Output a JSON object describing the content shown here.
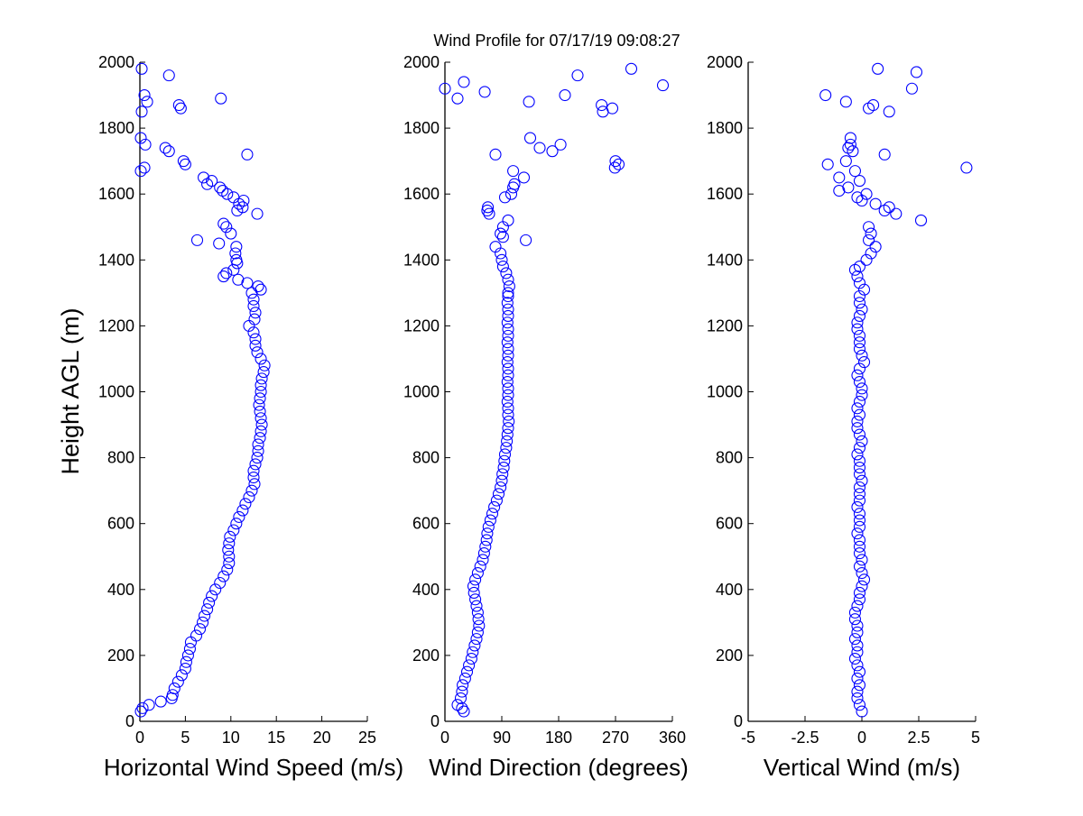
{
  "chart_data": [
    {
      "type": "scatter",
      "title": "Wind Profile for  07/17/19 09:08:27",
      "xlabel": "Horizontal Wind Speed (m/s)",
      "ylabel": "Height AGL (m)",
      "xlim": [
        0,
        25
      ],
      "ylim": [
        0,
        2000
      ],
      "xticks": [
        "0",
        "5",
        "10",
        "15",
        "20",
        "25"
      ],
      "xtick_values": [
        0,
        5,
        10,
        15,
        20,
        25
      ],
      "yticks": [
        "0",
        "200",
        "400",
        "600",
        "800",
        "1000",
        "1200",
        "1400",
        "1600",
        "1800",
        "2000"
      ],
      "ytick_values": [
        0,
        200,
        400,
        600,
        800,
        1000,
        1200,
        1400,
        1600,
        1800,
        2000
      ],
      "marker_color": "#0000ff",
      "y": [
        30,
        40,
        50,
        60,
        70,
        80,
        100,
        120,
        140,
        160,
        180,
        200,
        220,
        240,
        260,
        280,
        300,
        320,
        340,
        360,
        380,
        400,
        420,
        440,
        460,
        480,
        500,
        520,
        540,
        560,
        580,
        600,
        620,
        640,
        660,
        680,
        700,
        720,
        740,
        760,
        780,
        800,
        820,
        840,
        860,
        880,
        900,
        920,
        940,
        960,
        980,
        1000,
        1020,
        1040,
        1060,
        1080,
        1100,
        1120,
        1140,
        1160,
        1180,
        1200,
        1220,
        1240,
        1260,
        1280,
        1300,
        1310,
        1320,
        1330,
        1340,
        1350,
        1360,
        1370,
        1390,
        1400,
        1420,
        1440,
        1450,
        1460,
        1480,
        1500,
        1510,
        1540,
        1550,
        1560,
        1570,
        1580,
        1590,
        1600,
        1610,
        1620,
        1630,
        1640,
        1650,
        1670,
        1680,
        1690,
        1700,
        1720,
        1730,
        1740,
        1750,
        1770,
        1850,
        1860,
        1870,
        1880,
        1890,
        1900,
        1960,
        1980
      ],
      "x": [
        0.1,
        0.3,
        1,
        2.3,
        3.5,
        3.6,
        3.8,
        4.2,
        4.6,
        5,
        5.1,
        5.3,
        5.5,
        5.6,
        6.2,
        6.6,
        6.9,
        7.1,
        7.4,
        7.6,
        7.9,
        8.3,
        8.8,
        9.2,
        9.6,
        9.8,
        9.8,
        9.7,
        9.8,
        9.9,
        10.3,
        10.6,
        10.9,
        11.3,
        11.6,
        12,
        12.3,
        12.6,
        12.5,
        12.5,
        12.7,
        12.9,
        13,
        13,
        13.2,
        13.3,
        13.4,
        13.3,
        13.2,
        13.1,
        13.2,
        13.3,
        13.3,
        13.4,
        13.6,
        13.7,
        13.3,
        12.9,
        12.7,
        12.7,
        12.5,
        12,
        12.6,
        12.7,
        12.5,
        12.5,
        12.3,
        13.3,
        13,
        11.8,
        10.8,
        9.2,
        9.5,
        10.3,
        10.7,
        10.6,
        10.5,
        10.6,
        8.7,
        6.3,
        10,
        9.5,
        9.2,
        12.9,
        10.7,
        11.3,
        10.9,
        11.4,
        10.3,
        9.6,
        9.1,
        8.8,
        7.4,
        7.9,
        7,
        0.1,
        0.5,
        5,
        4.8,
        11.8,
        3.2,
        2.8,
        0.6,
        0.1,
        0.2,
        4.5,
        4.3,
        0.8,
        8.9,
        0.5,
        3.2,
        0.2
      ]
    },
    {
      "type": "scatter",
      "xlabel": "Wind Direction (degrees)",
      "xlim": [
        0,
        360
      ],
      "ylim": [
        0,
        2000
      ],
      "xticks": [
        "0",
        "90",
        "180",
        "270",
        "360"
      ],
      "xtick_values": [
        0,
        90,
        180,
        270,
        360
      ],
      "yticks": [
        "0",
        "200",
        "400",
        "600",
        "800",
        "1000",
        "1200",
        "1400",
        "1600",
        "1800",
        "2000"
      ],
      "ytick_values": [
        0,
        200,
        400,
        600,
        800,
        1000,
        1200,
        1400,
        1600,
        1800,
        2000
      ],
      "marker_color": "#0000ff",
      "y": [
        30,
        40,
        50,
        70,
        90,
        110,
        130,
        150,
        170,
        190,
        210,
        230,
        250,
        270,
        290,
        310,
        330,
        350,
        370,
        390,
        410,
        430,
        450,
        470,
        490,
        510,
        530,
        550,
        570,
        590,
        610,
        630,
        650,
        670,
        690,
        710,
        730,
        750,
        770,
        790,
        810,
        830,
        850,
        870,
        890,
        910,
        930,
        950,
        970,
        990,
        1010,
        1030,
        1050,
        1070,
        1090,
        1110,
        1130,
        1150,
        1170,
        1190,
        1210,
        1230,
        1250,
        1270,
        1290,
        1300,
        1320,
        1340,
        1360,
        1380,
        1400,
        1420,
        1440,
        1460,
        1470,
        1480,
        1500,
        1520,
        1540,
        1550,
        1560,
        1590,
        1600,
        1620,
        1630,
        1650,
        1670,
        1680,
        1690,
        1700,
        1720,
        1730,
        1740,
        1750,
        1770,
        1850,
        1860,
        1870,
        1880,
        1890,
        1900,
        1910,
        1920,
        1930,
        1940,
        1960,
        1980
      ],
      "x": [
        30,
        27,
        20,
        25,
        27,
        28,
        32,
        35,
        38,
        42,
        44,
        47,
        50,
        52,
        54,
        53,
        52,
        50,
        48,
        46,
        45,
        48,
        52,
        56,
        60,
        62,
        64,
        66,
        67,
        69,
        72,
        75,
        78,
        82,
        85,
        88,
        90,
        91,
        93,
        94,
        95,
        97,
        98,
        99,
        100,
        101,
        100,
        100,
        99,
        100,
        100,
        99,
        100,
        100,
        99,
        100,
        100,
        99,
        100,
        100,
        99,
        100,
        100,
        99,
        100,
        100,
        102,
        100,
        97,
        92,
        90,
        88,
        80,
        128,
        92,
        88,
        92,
        100,
        70,
        67,
        68,
        95,
        105,
        108,
        110,
        125,
        108,
        269,
        275,
        270,
        80,
        170,
        150,
        183,
        135,
        250,
        265,
        248,
        133,
        20,
        190,
        63,
        0,
        345,
        30,
        210,
        295
      ]
    },
    {
      "type": "scatter",
      "xlabel": "Vertical Wind (m/s)",
      "xlim": [
        -5,
        5
      ],
      "ylim": [
        0,
        2000
      ],
      "xticks": [
        "-5",
        "-2.5",
        "0",
        "2.5",
        "5"
      ],
      "xtick_values": [
        -5,
        -2.5,
        0,
        2.5,
        5
      ],
      "yticks": [
        "0",
        "200",
        "400",
        "600",
        "800",
        "1000",
        "1200",
        "1400",
        "1600",
        "1800",
        "2000"
      ],
      "ytick_values": [
        0,
        200,
        400,
        600,
        800,
        1000,
        1200,
        1400,
        1600,
        1800,
        2000
      ],
      "marker_color": "#0000ff",
      "y": [
        30,
        50,
        70,
        90,
        110,
        130,
        150,
        170,
        190,
        210,
        230,
        250,
        270,
        290,
        310,
        330,
        350,
        370,
        390,
        410,
        430,
        450,
        470,
        490,
        510,
        530,
        550,
        570,
        590,
        610,
        630,
        650,
        670,
        690,
        710,
        730,
        750,
        770,
        790,
        810,
        830,
        850,
        870,
        890,
        910,
        930,
        950,
        970,
        990,
        1010,
        1030,
        1050,
        1070,
        1090,
        1110,
        1130,
        1150,
        1170,
        1190,
        1210,
        1230,
        1250,
        1270,
        1290,
        1310,
        1330,
        1350,
        1370,
        1380,
        1400,
        1420,
        1440,
        1460,
        1480,
        1500,
        1520,
        1540,
        1550,
        1560,
        1570,
        1580,
        1590,
        1600,
        1610,
        1620,
        1640,
        1650,
        1670,
        1680,
        1690,
        1700,
        1720,
        1730,
        1740,
        1750,
        1770,
        1850,
        1860,
        1870,
        1880,
        1900,
        1920,
        1970,
        1980
      ],
      "x": [
        0,
        -0.1,
        -0.2,
        -0.2,
        -0.1,
        -0.2,
        -0.1,
        -0.2,
        -0.3,
        -0.2,
        -0.2,
        -0.3,
        -0.2,
        -0.2,
        -0.3,
        -0.3,
        -0.2,
        -0.1,
        -0.1,
        0,
        0.1,
        0,
        -0.1,
        0,
        -0.1,
        -0.1,
        -0.1,
        -0.2,
        -0.1,
        -0.1,
        -0.1,
        -0.2,
        -0.1,
        -0.1,
        -0.1,
        0,
        -0.1,
        -0.1,
        -0.1,
        -0.2,
        -0.1,
        0,
        -0.1,
        -0.2,
        -0.2,
        -0.1,
        -0.2,
        -0.1,
        0,
        0,
        -0.1,
        -0.2,
        -0.1,
        0.1,
        0,
        -0.1,
        -0.1,
        -0.1,
        -0.2,
        -0.2,
        -0.1,
        0,
        -0.1,
        -0.1,
        0.1,
        -0.1,
        -0.2,
        -0.3,
        -0.1,
        0.2,
        0.4,
        0.6,
        0.3,
        0.4,
        0.3,
        2.6,
        1.5,
        1,
        1.2,
        0.6,
        0,
        -0.2,
        0.2,
        -1,
        -0.6,
        -0.1,
        -1,
        -0.3,
        4.6,
        -1.5,
        -0.7,
        1,
        -0.4,
        -0.6,
        -0.5,
        -0.5,
        1.2,
        0.3,
        0.5,
        -0.7,
        -1.6,
        2.2,
        2.4,
        0.7
      ]
    }
  ]
}
